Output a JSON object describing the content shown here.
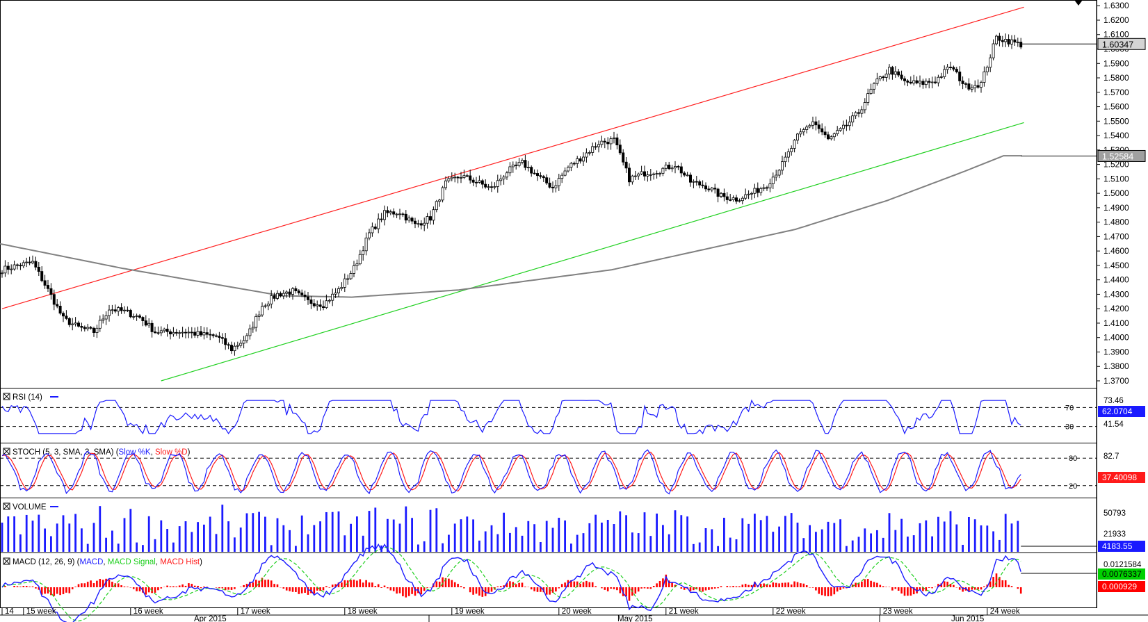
{
  "chart_data": {
    "type": "candlestick",
    "price_axis": {
      "labels": [
        "1.6300",
        "1.6200",
        "1.6100",
        "1.6000",
        "1.5900",
        "1.5800",
        "1.5700",
        "1.5600",
        "1.5500",
        "1.5400",
        "1.5300",
        "1.5200",
        "1.5100",
        "1.5000",
        "1.4900",
        "1.4800",
        "1.4700",
        "1.4600",
        "1.4500",
        "1.4400",
        "1.4300",
        "1.4200",
        "1.4100",
        "1.4000",
        "1.3900",
        "1.3800",
        "1.3700"
      ],
      "current_price_label": "1.60347",
      "ma_label": "1.52584",
      "ylim": [
        1.37,
        1.633
      ]
    },
    "key_points": [
      [
        0,
        1.447
      ],
      [
        5,
        1.45
      ],
      [
        10,
        1.452
      ],
      [
        15,
        1.433
      ],
      [
        20,
        1.413
      ],
      [
        25,
        1.407
      ],
      [
        30,
        1.404
      ],
      [
        35,
        1.42
      ],
      [
        40,
        1.418
      ],
      [
        45,
        1.414
      ],
      [
        50,
        1.404
      ],
      [
        55,
        1.404
      ],
      [
        60,
        1.404
      ],
      [
        65,
        1.402
      ],
      [
        70,
        1.401
      ],
      [
        75,
        1.392
      ],
      [
        80,
        1.4
      ],
      [
        85,
        1.422
      ],
      [
        90,
        1.43
      ],
      [
        95,
        1.432
      ],
      [
        100,
        1.425
      ],
      [
        105,
        1.423
      ],
      [
        110,
        1.433
      ],
      [
        115,
        1.448
      ],
      [
        120,
        1.472
      ],
      [
        125,
        1.486
      ],
      [
        130,
        1.487
      ],
      [
        135,
        1.478
      ],
      [
        140,
        1.483
      ],
      [
        145,
        1.507
      ],
      [
        150,
        1.512
      ],
      [
        155,
        1.508
      ],
      [
        160,
        1.503
      ],
      [
        165,
        1.515
      ],
      [
        170,
        1.521
      ],
      [
        175,
        1.512
      ],
      [
        180,
        1.504
      ],
      [
        185,
        1.518
      ],
      [
        190,
        1.526
      ],
      [
        195,
        1.535
      ],
      [
        200,
        1.537
      ],
      [
        205,
        1.51
      ],
      [
        210,
        1.514
      ],
      [
        215,
        1.516
      ],
      [
        220,
        1.52
      ],
      [
        225,
        1.508
      ],
      [
        230,
        1.505
      ],
      [
        235,
        1.498
      ],
      [
        240,
        1.496
      ],
      [
        245,
        1.5
      ],
      [
        250,
        1.506
      ],
      [
        255,
        1.52
      ],
      [
        260,
        1.539
      ],
      [
        265,
        1.55
      ],
      [
        270,
        1.537
      ],
      [
        275,
        1.545
      ],
      [
        280,
        1.556
      ],
      [
        285,
        1.575
      ],
      [
        290,
        1.586
      ],
      [
        295,
        1.577
      ],
      [
        300,
        1.576
      ],
      [
        305,
        1.578
      ],
      [
        310,
        1.588
      ],
      [
        315,
        1.574
      ],
      [
        320,
        1.576
      ],
      [
        325,
        1.608
      ],
      [
        330,
        1.605
      ],
      [
        333,
        1.603
      ]
    ],
    "bars_per_day": 5,
    "week_labels": [
      "14",
      "15 week",
      "16 week",
      "17 week",
      "18 week",
      "19 week",
      "20 week",
      "21 week",
      "22 week",
      "23 week",
      "24 week"
    ],
    "month_labels": [
      "Apr 2015",
      "May 2015",
      "Jun 2015"
    ],
    "red_trendline": {
      "from": [
        0,
        1.42
      ],
      "to": [
        334,
        1.629
      ]
    },
    "green_trendline": {
      "from": [
        0,
        1.337
      ],
      "to": [
        334,
        1.549
      ]
    },
    "ma": {
      "anchors": [
        [
          0,
          1.465
        ],
        [
          40,
          1.448
        ],
        [
          92,
          1.429
        ],
        [
          115,
          1.428
        ],
        [
          150,
          1.433
        ],
        [
          200,
          1.447
        ],
        [
          260,
          1.475
        ],
        [
          290,
          1.495
        ],
        [
          315,
          1.515
        ],
        [
          328,
          1.526
        ],
        [
          334,
          1.526
        ]
      ]
    },
    "rsi": {
      "label": "RSI (14)",
      "levels": [
        "70",
        "30"
      ],
      "labels": [
        "73.46",
        "41.54"
      ],
      "current": "62.0704"
    },
    "stoch": {
      "label": "STOCH (5, 3, SMA, 3, SMA)",
      "k_name": "Slow %K",
      "d_name": "Slow %D",
      "levels": [
        "80",
        "20"
      ],
      "labels": [
        "82.7"
      ],
      "current": "37.40098"
    },
    "volume": {
      "label": "VOLUME",
      "labels": [
        "50793",
        "21933"
      ],
      "current": "4183.55"
    },
    "macd": {
      "label": "MACD (12, 26, 9)",
      "macd_name": "MACD",
      "signal_name": "MACD Signal",
      "hist_name": "MACD Hist",
      "labels": [
        "0.0121584"
      ],
      "current_macd": "0.0076337",
      "current_hist": "0.000929"
    }
  },
  "colors": {
    "candle": "#000000",
    "red_line": "#ff2020",
    "green_line": "#20d020",
    "ma": "#808080",
    "rsi": "#1a1aff",
    "stoch_k": "#1a1aff",
    "stoch_d": "#ff1a1a",
    "volume": "#1a1aff",
    "macd": "#1a1aff",
    "signal": "#1ecf1e",
    "hist": "#ff0000",
    "price_tag_bg": "#d4d4d4",
    "ma_tag_bg": "#a0a0a0",
    "rsi_tag_bg": "#1a1aff",
    "stoch_tag_bg": "#ff1a1a",
    "vol_tag_bg": "#1a1aff",
    "macd_tag_bg": "#00d000",
    "hist_tag_bg": "#ff0000"
  }
}
